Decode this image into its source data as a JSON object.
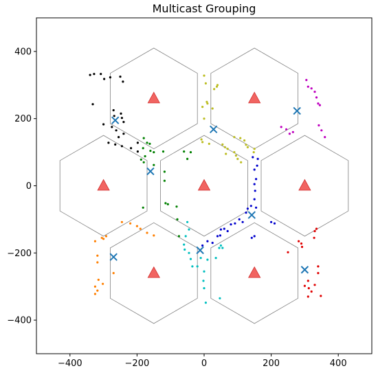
{
  "chart_data": {
    "type": "scatter",
    "title": "Multicast Grouping",
    "xlabel": "",
    "ylabel": "",
    "xlim": [
      -500,
      500
    ],
    "ylim": [
      -500,
      500
    ],
    "xticks": [
      -400,
      -200,
      0,
      200,
      400
    ],
    "yticks": [
      -400,
      -200,
      0,
      200,
      400
    ],
    "xtick_labels": [
      "−400",
      "−200",
      "0",
      "200",
      "400"
    ],
    "ytick_labels": [
      "−400",
      "−200",
      "0",
      "200",
      "400"
    ],
    "grid": false,
    "hexagon_radius": 150,
    "hexagon_color": "#808080",
    "base_station_color": "#ef5350",
    "base_stations": [
      {
        "x": 0,
        "y": 0
      },
      {
        "x": -150,
        "y": 260
      },
      {
        "x": 150,
        "y": 260
      },
      {
        "x": -300,
        "y": 0
      },
      {
        "x": 300,
        "y": 0
      },
      {
        "x": -150,
        "y": -260
      },
      {
        "x": 150,
        "y": -260
      }
    ],
    "centroid_color": "#1f77b4",
    "groups": [
      {
        "color": "#000000",
        "centroid": {
          "x": -265,
          "y": 195
        },
        "points": [
          {
            "x": -340,
            "y": 330
          },
          {
            "x": -328,
            "y": 333
          },
          {
            "x": -308,
            "y": 333
          },
          {
            "x": -280,
            "y": 323
          },
          {
            "x": -250,
            "y": 325
          },
          {
            "x": -298,
            "y": 318
          },
          {
            "x": -242,
            "y": 310
          },
          {
            "x": -332,
            "y": 243
          },
          {
            "x": -270,
            "y": 225
          },
          {
            "x": -248,
            "y": 215
          },
          {
            "x": -268,
            "y": 208
          },
          {
            "x": -245,
            "y": 202
          },
          {
            "x": -240,
            "y": 190
          },
          {
            "x": -300,
            "y": 183
          },
          {
            "x": -275,
            "y": 175
          },
          {
            "x": -262,
            "y": 165
          },
          {
            "x": -240,
            "y": 155
          },
          {
            "x": -255,
            "y": 145
          },
          {
            "x": -285,
            "y": 128
          },
          {
            "x": -265,
            "y": 123
          },
          {
            "x": -245,
            "y": 118
          },
          {
            "x": -198,
            "y": 128
          },
          {
            "x": -218,
            "y": 112
          },
          {
            "x": -198,
            "y": 102
          }
        ]
      },
      {
        "color": "#008000",
        "centroid": {
          "x": -160,
          "y": 43
        },
        "points": [
          {
            "x": -180,
            "y": 142
          },
          {
            "x": -170,
            "y": 128
          },
          {
            "x": -162,
            "y": 125
          },
          {
            "x": -182,
            "y": 112
          },
          {
            "x": -160,
            "y": 104
          },
          {
            "x": -150,
            "y": 100
          },
          {
            "x": -122,
            "y": 102
          },
          {
            "x": -176,
            "y": 88
          },
          {
            "x": -188,
            "y": 78
          },
          {
            "x": -180,
            "y": 70
          },
          {
            "x": -150,
            "y": 62
          },
          {
            "x": -60,
            "y": 102
          },
          {
            "x": -50,
            "y": 80
          },
          {
            "x": -40,
            "y": 100
          },
          {
            "x": -118,
            "y": 42
          },
          {
            "x": -118,
            "y": 15
          },
          {
            "x": -115,
            "y": -52
          },
          {
            "x": -108,
            "y": -55
          },
          {
            "x": -182,
            "y": -65
          },
          {
            "x": -82,
            "y": -62
          },
          {
            "x": -80,
            "y": -100
          },
          {
            "x": -75,
            "y": -150
          }
        ]
      },
      {
        "color": "#bcbd22",
        "centroid": {
          "x": 28,
          "y": 168
        },
        "points": [
          {
            "x": 0,
            "y": 328
          },
          {
            "x": 40,
            "y": 300
          },
          {
            "x": 38,
            "y": 295
          },
          {
            "x": 5,
            "y": 305
          },
          {
            "x": 30,
            "y": 288
          },
          {
            "x": 8,
            "y": 250
          },
          {
            "x": 10,
            "y": 245
          },
          {
            "x": -5,
            "y": 235
          },
          {
            "x": 25,
            "y": 230
          },
          {
            "x": 0,
            "y": 200
          },
          {
            "x": -8,
            "y": 138
          },
          {
            "x": -5,
            "y": 130
          },
          {
            "x": 15,
            "y": 125
          },
          {
            "x": 55,
            "y": 123
          },
          {
            "x": 62,
            "y": 115
          },
          {
            "x": 65,
            "y": 95
          },
          {
            "x": 70,
            "y": 110
          },
          {
            "x": 90,
            "y": 145
          },
          {
            "x": 108,
            "y": 142
          },
          {
            "x": 120,
            "y": 135
          },
          {
            "x": 125,
            "y": 122
          },
          {
            "x": 130,
            "y": 115
          },
          {
            "x": 90,
            "y": 100
          },
          {
            "x": 95,
            "y": 90
          },
          {
            "x": 100,
            "y": 80
          },
          {
            "x": 110,
            "y": 70
          },
          {
            "x": 150,
            "y": 110
          },
          {
            "x": 148,
            "y": 100
          }
        ]
      },
      {
        "color": "#bf00bf",
        "centroid": {
          "x": 277,
          "y": 223
        },
        "points": [
          {
            "x": 305,
            "y": 315
          },
          {
            "x": 310,
            "y": 295
          },
          {
            "x": 320,
            "y": 290
          },
          {
            "x": 330,
            "y": 280
          },
          {
            "x": 335,
            "y": 263
          },
          {
            "x": 340,
            "y": 245
          },
          {
            "x": 345,
            "y": 240
          },
          {
            "x": 342,
            "y": 180
          },
          {
            "x": 350,
            "y": 165
          },
          {
            "x": 230,
            "y": 175
          },
          {
            "x": 245,
            "y": 168
          },
          {
            "x": 255,
            "y": 155
          },
          {
            "x": 265,
            "y": 160
          },
          {
            "x": 360,
            "y": 145
          }
        ]
      },
      {
        "color": "#0000cd",
        "centroid": {
          "x": 142,
          "y": -87
        },
        "points": [
          {
            "x": 145,
            "y": 85
          },
          {
            "x": 160,
            "y": 80
          },
          {
            "x": 158,
            "y": 60
          },
          {
            "x": 150,
            "y": 48
          },
          {
            "x": 155,
            "y": 20
          },
          {
            "x": 150,
            "y": 5
          },
          {
            "x": 152,
            "y": -15
          },
          {
            "x": 150,
            "y": -40
          },
          {
            "x": 140,
            "y": -60
          },
          {
            "x": 155,
            "y": -65
          },
          {
            "x": 130,
            "y": -68
          },
          {
            "x": 125,
            "y": -80
          },
          {
            "x": 105,
            "y": -100
          },
          {
            "x": 115,
            "y": -108
          },
          {
            "x": 200,
            "y": -108
          },
          {
            "x": 210,
            "y": -112
          },
          {
            "x": 92,
            "y": -112
          },
          {
            "x": 80,
            "y": -115
          },
          {
            "x": 60,
            "y": -128
          },
          {
            "x": 50,
            "y": -130
          },
          {
            "x": 70,
            "y": -135
          },
          {
            "x": 48,
            "y": -148
          },
          {
            "x": 40,
            "y": -150
          },
          {
            "x": 25,
            "y": -170
          },
          {
            "x": 10,
            "y": -165
          },
          {
            "x": -5,
            "y": -178
          },
          {
            "x": 142,
            "y": -155
          },
          {
            "x": 150,
            "y": -150
          }
        ]
      },
      {
        "color": "#00bfbf",
        "centroid": {
          "x": -12,
          "y": -192
        },
        "points": [
          {
            "x": -50,
            "y": -108
          },
          {
            "x": -45,
            "y": -130
          },
          {
            "x": -55,
            "y": -150
          },
          {
            "x": -60,
            "y": -175
          },
          {
            "x": -58,
            "y": -190
          },
          {
            "x": -45,
            "y": -200
          },
          {
            "x": -40,
            "y": -218
          },
          {
            "x": -35,
            "y": -240
          },
          {
            "x": -20,
            "y": -240
          },
          {
            "x": 0,
            "y": -255
          },
          {
            "x": -2,
            "y": -283
          },
          {
            "x": 0,
            "y": -305
          },
          {
            "x": 5,
            "y": -348
          },
          {
            "x": 47,
            "y": -335
          },
          {
            "x": 50,
            "y": -178
          },
          {
            "x": 55,
            "y": -185
          },
          {
            "x": 45,
            "y": -185
          },
          {
            "x": 35,
            "y": -215
          },
          {
            "x": 10,
            "y": -220
          },
          {
            "x": -10,
            "y": -215
          }
        ]
      },
      {
        "color": "#ff7f00",
        "centroid": {
          "x": -270,
          "y": -212
        },
        "points": [
          {
            "x": -245,
            "y": -108
          },
          {
            "x": -220,
            "y": -112
          },
          {
            "x": -200,
            "y": -120
          },
          {
            "x": -190,
            "y": -128
          },
          {
            "x": -170,
            "y": -140
          },
          {
            "x": -150,
            "y": -148
          },
          {
            "x": -300,
            "y": -158
          },
          {
            "x": -305,
            "y": -155
          },
          {
            "x": -292,
            "y": -150
          },
          {
            "x": -325,
            "y": -165
          },
          {
            "x": -318,
            "y": -208
          },
          {
            "x": -318,
            "y": -228
          },
          {
            "x": -270,
            "y": -260
          },
          {
            "x": -315,
            "y": -280
          },
          {
            "x": -302,
            "y": -292
          },
          {
            "x": -325,
            "y": -300
          },
          {
            "x": -318,
            "y": -312
          },
          {
            "x": -325,
            "y": -322
          }
        ]
      },
      {
        "color": "#e00000",
        "centroid": {
          "x": 300,
          "y": -250
        },
        "points": [
          {
            "x": 335,
            "y": -128
          },
          {
            "x": 330,
            "y": -135
          },
          {
            "x": 328,
            "y": -155
          },
          {
            "x": 282,
            "y": -165
          },
          {
            "x": 290,
            "y": -172
          },
          {
            "x": 292,
            "y": -182
          },
          {
            "x": 250,
            "y": -198
          },
          {
            "x": 340,
            "y": -240
          },
          {
            "x": 340,
            "y": -260
          },
          {
            "x": 310,
            "y": -283
          },
          {
            "x": 300,
            "y": -298
          },
          {
            "x": 330,
            "y": -295
          },
          {
            "x": 312,
            "y": -305
          },
          {
            "x": 320,
            "y": -315
          },
          {
            "x": 348,
            "y": -328
          },
          {
            "x": 310,
            "y": -330
          }
        ]
      }
    ]
  }
}
